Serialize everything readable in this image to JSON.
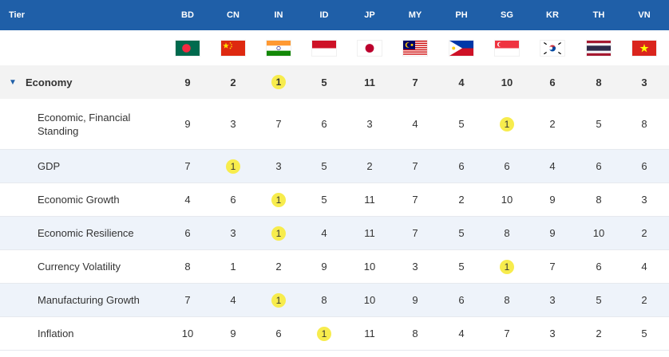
{
  "header": {
    "tier_label": "Tier",
    "countries": [
      "BD",
      "CN",
      "IN",
      "ID",
      "JP",
      "MY",
      "PH",
      "SG",
      "KR",
      "TH",
      "VN"
    ]
  },
  "flags": [
    {
      "country": "BD",
      "icon": "bangladesh-flag-icon"
    },
    {
      "country": "CN",
      "icon": "china-flag-icon"
    },
    {
      "country": "IN",
      "icon": "india-flag-icon"
    },
    {
      "country": "ID",
      "icon": "indonesia-flag-icon"
    },
    {
      "country": "JP",
      "icon": "japan-flag-icon"
    },
    {
      "country": "MY",
      "icon": "malaysia-flag-icon"
    },
    {
      "country": "PH",
      "icon": "philippines-flag-icon"
    },
    {
      "country": "SG",
      "icon": "singapore-flag-icon"
    },
    {
      "country": "KR",
      "icon": "south-korea-flag-icon"
    },
    {
      "country": "TH",
      "icon": "thailand-flag-icon"
    },
    {
      "country": "VN",
      "icon": "vietnam-flag-icon"
    }
  ],
  "group": {
    "toggle_icon": "▼",
    "label": "Economy",
    "values": [
      "9",
      "2",
      "1",
      "5",
      "11",
      "7",
      "4",
      "10",
      "6",
      "8",
      "3"
    ]
  },
  "rows": [
    {
      "label": "Economic, Financial Standing",
      "values": [
        "9",
        "3",
        "7",
        "6",
        "3",
        "4",
        "5",
        "1",
        "2",
        "5",
        "8"
      ]
    },
    {
      "label": "GDP",
      "values": [
        "7",
        "1",
        "3",
        "5",
        "2",
        "7",
        "6",
        "6",
        "4",
        "6",
        "6"
      ]
    },
    {
      "label": "Economic Growth",
      "values": [
        "4",
        "6",
        "1",
        "5",
        "11",
        "7",
        "2",
        "10",
        "9",
        "8",
        "3"
      ]
    },
    {
      "label": "Economic Resilience",
      "values": [
        "6",
        "3",
        "1",
        "4",
        "11",
        "7",
        "5",
        "8",
        "9",
        "10",
        "2"
      ]
    },
    {
      "label": "Currency Volatility",
      "values": [
        "8",
        "1",
        "2",
        "9",
        "10",
        "3",
        "5",
        "1",
        "7",
        "6",
        "4"
      ]
    },
    {
      "label": "Manufacturing Growth",
      "values": [
        "7",
        "4",
        "1",
        "8",
        "10",
        "9",
        "6",
        "8",
        "3",
        "5",
        "2"
      ]
    },
    {
      "label": "Inflation",
      "values": [
        "10",
        "9",
        "6",
        "1",
        "11",
        "8",
        "4",
        "7",
        "3",
        "2",
        "5"
      ]
    }
  ],
  "colors": {
    "header_bg": "#1f5fa8",
    "group_bg": "#f3f3f3",
    "alt_row_bg": "#eef3fa",
    "rank_one_highlight": "#f7ec4d"
  }
}
